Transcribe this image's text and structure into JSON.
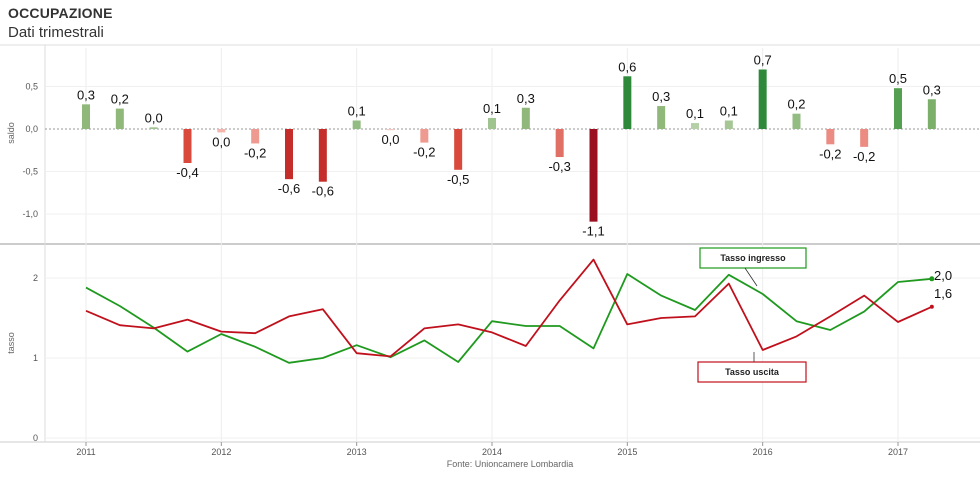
{
  "title": "OCCUPAZIONE",
  "subtitle": "Dati trimestrali",
  "source": "Fonte: Unioncamere Lombardia",
  "chart_data": [
    {
      "type": "bar",
      "ylabel": "saldo",
      "ylim": [
        -1.25,
        0.75
      ],
      "yticks": [
        0.5,
        0.0,
        -0.5,
        -1.0
      ],
      "ytick_labels": [
        "0,5",
        "0,0",
        "-0,5",
        "-1,0"
      ],
      "x": [
        2011.0,
        2011.25,
        2011.5,
        2011.75,
        2012.0,
        2012.25,
        2012.5,
        2012.75,
        2013.0,
        2013.25,
        2013.5,
        2013.75,
        2014.0,
        2014.25,
        2014.5,
        2014.75,
        2015.0,
        2015.25,
        2015.5,
        2015.75,
        2016.0,
        2016.25,
        2016.5,
        2016.75,
        2017.0,
        2017.25
      ],
      "values": [
        0.29,
        0.24,
        0.02,
        -0.4,
        -0.04,
        -0.17,
        -0.59,
        -0.62,
        0.1,
        -0.01,
        -0.16,
        -0.48,
        0.13,
        0.25,
        -0.33,
        -1.09,
        0.62,
        0.27,
        0.07,
        0.1,
        0.7,
        0.18,
        -0.18,
        -0.21,
        0.48,
        0.35
      ],
      "labels": [
        "0,3",
        "0,2",
        "0,0",
        "-0,4",
        "0,0",
        "-0,2",
        "-0,6",
        "-0,6",
        "0,1",
        "0,0",
        "-0,2",
        "-0,5",
        "0,1",
        "0,3",
        "-0,3",
        "-1,1",
        "0,6",
        "0,3",
        "0,1",
        "0,1",
        "0,7",
        "0,2",
        "-0,2",
        "-0,2",
        "0,5",
        "0,3"
      ],
      "colors": [
        "#8fb87a",
        "#8fb87a",
        "#9fc48f",
        "#d94a3d",
        "#f3b5ad",
        "#ef9a90",
        "#c42d2a",
        "#c42d2a",
        "#93bc83",
        "#f3c8c3",
        "#ef9a90",
        "#d94a3d",
        "#9fc48f",
        "#8fb87a",
        "#e06f65",
        "#9b1020",
        "#2e8a3a",
        "#8fb87a",
        "#b5d0a8",
        "#a4c795",
        "#2e8a3a",
        "#93bc83",
        "#ec8b82",
        "#ec8b82",
        "#55a050",
        "#7cb06a"
      ]
    },
    {
      "type": "line",
      "ylabel": "tasso",
      "ylim": [
        0,
        2.3
      ],
      "yticks": [
        2,
        1,
        0
      ],
      "ytick_labels": [
        "2",
        "1",
        "0"
      ],
      "xticks": [
        2011,
        2012,
        2013,
        2014,
        2015,
        2016,
        2017
      ],
      "xtick_labels": [
        "2011",
        "2012",
        "2013",
        "2014",
        "2015",
        "2016",
        "2017"
      ],
      "x": [
        2011.0,
        2011.25,
        2011.5,
        2011.75,
        2012.0,
        2012.25,
        2012.5,
        2012.75,
        2013.0,
        2013.25,
        2013.5,
        2013.75,
        2014.0,
        2014.25,
        2014.5,
        2014.75,
        2015.0,
        2015.25,
        2015.5,
        2015.75,
        2016.0,
        2016.25,
        2016.5,
        2016.75,
        2017.0,
        2017.25
      ],
      "series": [
        {
          "name": "Tasso ingresso",
          "color": "#1f9a1f",
          "values": [
            1.88,
            1.65,
            1.38,
            1.08,
            1.3,
            1.14,
            0.94,
            1.0,
            1.16,
            1.01,
            1.22,
            0.95,
            1.46,
            1.4,
            1.4,
            1.12,
            2.05,
            1.78,
            1.6,
            2.04,
            1.8,
            1.46,
            1.35,
            1.58,
            1.95,
            1.99
          ],
          "end_label": "2,0"
        },
        {
          "name": "Tasso uscita",
          "color": "#c0101c",
          "values": [
            1.59,
            1.41,
            1.37,
            1.48,
            1.33,
            1.31,
            1.52,
            1.61,
            1.06,
            1.02,
            1.37,
            1.42,
            1.32,
            1.15,
            1.72,
            2.23,
            1.42,
            1.5,
            1.52,
            1.93,
            1.1,
            1.27,
            1.52,
            1.78,
            1.45,
            1.64
          ],
          "end_label": "1,6"
        }
      ]
    }
  ]
}
